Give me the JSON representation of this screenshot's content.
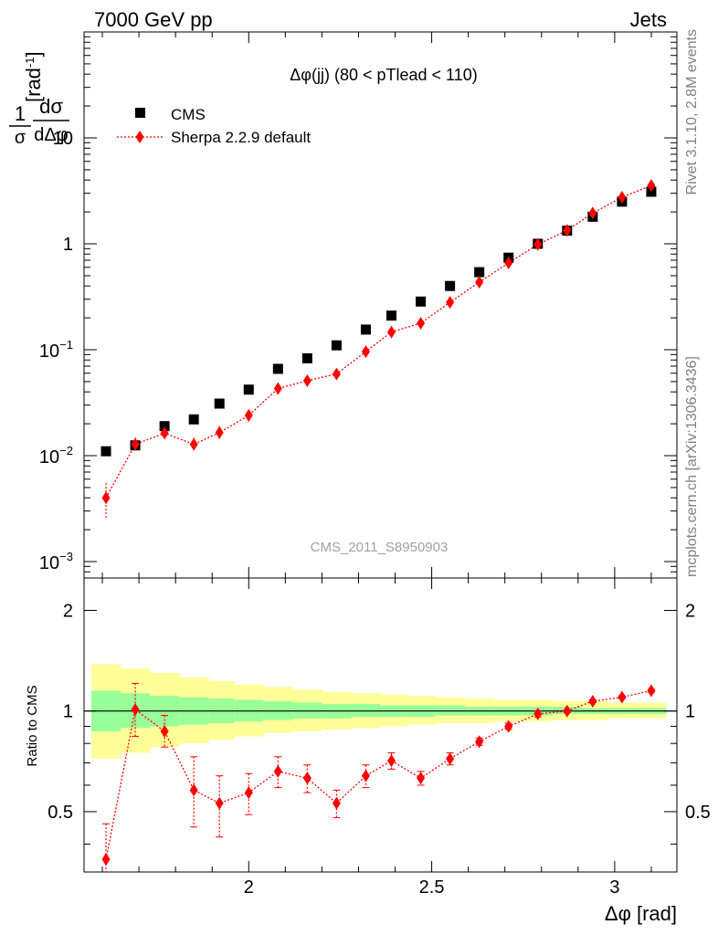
{
  "header": {
    "left": "7000 GeV pp",
    "right": "Jets"
  },
  "side_text": {
    "top": "Rivet 3.1.10,  2.8M events",
    "bottom": "mcplots.cern.ch [arXiv:1306.3436]"
  },
  "watermark": "CMS_2011_S8950903",
  "chart_data": [
    {
      "type": "scatter",
      "title": "Δφ(jj) (80 < pTlead <  110)",
      "ylabel": "1/σ dσ/dΔφ [rad⁻¹]",
      "yscale": "log",
      "ylim": [
        0.0007,
        100
      ],
      "xlim": [
        1.55,
        3.17
      ],
      "legend_position": "top-left",
      "x": [
        1.61,
        1.69,
        1.77,
        1.85,
        1.92,
        2.0,
        2.08,
        2.16,
        2.24,
        2.32,
        2.39,
        2.47,
        2.55,
        2.63,
        2.71,
        2.79,
        2.87,
        2.94,
        3.02,
        3.1
      ],
      "series": [
        {
          "name": "CMS",
          "color": "#000000",
          "marker": "square",
          "values": [
            0.011,
            0.0125,
            0.019,
            0.022,
            0.031,
            0.042,
            0.066,
            0.083,
            0.11,
            0.155,
            0.21,
            0.285,
            0.4,
            0.54,
            0.74,
            1.0,
            1.33,
            1.8,
            2.5,
            3.1
          ]
        },
        {
          "name": "Sherpa 2.2.9 default",
          "color": "#ff0000",
          "marker": "diamond",
          "line": "dotted",
          "values": [
            0.004,
            0.0128,
            0.0163,
            0.0128,
            0.0165,
            0.024,
            0.043,
            0.051,
            0.059,
            0.096,
            0.147,
            0.178,
            0.28,
            0.435,
            0.66,
            0.985,
            1.34,
            1.95,
            2.75,
            3.55
          ],
          "err_low": [
            0.0015,
            0.002,
            0.002,
            0.002,
            0.0025,
            0.003,
            0.004,
            0.004,
            0.005,
            0.007,
            0.01,
            0.012,
            0.018,
            0.025,
            0.04,
            0.05,
            0.06,
            0.08,
            0.1,
            0.12
          ],
          "err_high": [
            0.0015,
            0.002,
            0.002,
            0.002,
            0.0025,
            0.003,
            0.004,
            0.004,
            0.005,
            0.007,
            0.01,
            0.012,
            0.018,
            0.025,
            0.04,
            0.05,
            0.06,
            0.08,
            0.1,
            0.12
          ]
        }
      ],
      "y_ticks": [
        {
          "value": 10,
          "label": "10"
        },
        {
          "value": 1,
          "label": "1"
        }
      ],
      "y_ticks_pow": [
        {
          "value": 0.1,
          "base": "10",
          "exp": "−1"
        },
        {
          "value": 0.01,
          "base": "10",
          "exp": "−2"
        },
        {
          "value": 0.001,
          "base": "10",
          "exp": "−3"
        }
      ]
    },
    {
      "type": "scatter",
      "ylabel": "Ratio to CMS",
      "xlabel": "Δφ [rad]",
      "yscale": "log",
      "ylim": [
        0.33,
        2.5
      ],
      "xlim": [
        1.55,
        3.17
      ],
      "x_ticks": [
        {
          "value": 2,
          "label": "2"
        },
        {
          "value": 2.5,
          "label": "2.5"
        },
        {
          "value": 3,
          "label": "3"
        }
      ],
      "y_ticks": [
        {
          "value": 2,
          "label": "2"
        },
        {
          "value": 1,
          "label": "1"
        },
        {
          "value": 0.5,
          "label": "0.5"
        }
      ],
      "band_x_edges": [
        1.57,
        1.65,
        1.73,
        1.81,
        1.89,
        1.96,
        2.04,
        2.12,
        2.2,
        2.28,
        2.36,
        2.43,
        2.51,
        2.59,
        2.67,
        2.75,
        2.83,
        2.91,
        2.98,
        3.06,
        3.14
      ],
      "band_yellow": {
        "lo": [
          0.72,
          0.75,
          0.78,
          0.8,
          0.82,
          0.84,
          0.86,
          0.87,
          0.88,
          0.89,
          0.9,
          0.91,
          0.92,
          0.92,
          0.93,
          0.93,
          0.94,
          0.94,
          0.95,
          0.95
        ],
        "hi": [
          1.38,
          1.34,
          1.3,
          1.26,
          1.23,
          1.2,
          1.18,
          1.16,
          1.14,
          1.13,
          1.12,
          1.11,
          1.1,
          1.09,
          1.08,
          1.08,
          1.07,
          1.07,
          1.06,
          1.06
        ],
        "color": "#ffff99"
      },
      "band_green": {
        "lo": [
          0.87,
          0.89,
          0.9,
          0.91,
          0.92,
          0.93,
          0.94,
          0.95,
          0.95,
          0.96,
          0.96,
          0.96,
          0.97,
          0.97,
          0.97,
          0.97,
          0.98,
          0.98,
          0.98,
          0.98
        ],
        "hi": [
          1.15,
          1.13,
          1.11,
          1.1,
          1.09,
          1.08,
          1.07,
          1.06,
          1.05,
          1.05,
          1.04,
          1.04,
          1.04,
          1.03,
          1.03,
          1.03,
          1.03,
          1.02,
          1.02,
          1.02
        ],
        "color": "#99ff99"
      },
      "x": [
        1.61,
        1.69,
        1.77,
        1.85,
        1.92,
        2.0,
        2.08,
        2.16,
        2.24,
        2.32,
        2.39,
        2.47,
        2.55,
        2.63,
        2.71,
        2.79,
        2.87,
        2.94,
        3.02,
        3.1
      ],
      "series": [
        {
          "name": "Sherpa 2.2.9 default",
          "color": "#ff0000",
          "values": [
            0.36,
            1.01,
            0.87,
            0.58,
            0.53,
            0.57,
            0.66,
            0.63,
            0.53,
            0.64,
            0.71,
            0.63,
            0.72,
            0.81,
            0.9,
            0.98,
            1.0,
            1.07,
            1.1,
            1.15
          ],
          "err_low": [
            0.1,
            0.17,
            0.09,
            0.13,
            0.11,
            0.08,
            0.07,
            0.06,
            0.05,
            0.05,
            0.04,
            0.03,
            0.03,
            0.02,
            0.02,
            0.02,
            0.01,
            0.01,
            0.01,
            0.01
          ],
          "err_high": [
            0.1,
            0.2,
            0.1,
            0.15,
            0.11,
            0.08,
            0.07,
            0.06,
            0.05,
            0.05,
            0.04,
            0.03,
            0.03,
            0.02,
            0.02,
            0.02,
            0.01,
            0.01,
            0.01,
            0.01
          ]
        }
      ]
    }
  ]
}
